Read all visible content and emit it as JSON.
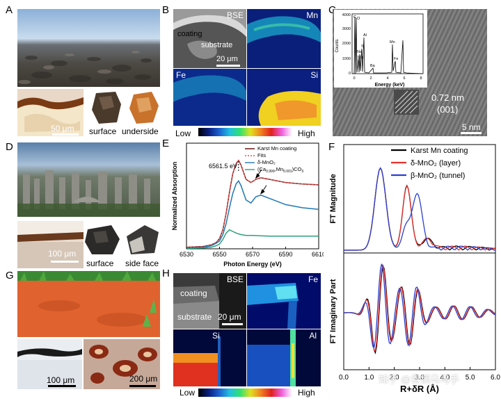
{
  "panel_labels": {
    "a": "A",
    "b": "B",
    "c": "C",
    "d": "D",
    "e": "E",
    "f": "F",
    "g": "G",
    "h": "H"
  },
  "panel_a": {
    "scale": "50 μm",
    "surface": "surface",
    "underside": "underside"
  },
  "panel_b": {
    "bse": "BSE",
    "mn": "Mn",
    "fe": "Fe",
    "si": "Si",
    "coating": "coating",
    "substrate": "substrate",
    "scale": "20 μm",
    "low": "Low",
    "high": "High"
  },
  "panel_c": {
    "d_spacing": "0.72 nm",
    "plane": "(001)",
    "scale": "5 nm",
    "inset": {
      "ylabel": "Counts",
      "xlabel": "Energy (keV)",
      "yticks": [
        "0",
        "1000",
        "2000",
        "3000",
        "4000"
      ],
      "xticks": [
        "0",
        "2",
        "4",
        "6",
        "8"
      ],
      "peaks": [
        "C",
        "O",
        "Na",
        "Mg",
        "Si",
        "Al",
        "Ba",
        "Mn",
        "Fe"
      ]
    }
  },
  "panel_d": {
    "scale": "100 μm",
    "surface": "surface",
    "side_face": "side face"
  },
  "panel_e": {
    "peak_label": "6561.5 eV"
  },
  "panel_g": {
    "scale1": "100 μm",
    "scale2": "200 μm"
  },
  "panel_h": {
    "bse": "BSE",
    "fe": "Fe",
    "si": "Si",
    "al": "Al",
    "coating": "coating",
    "substrate": "substrate",
    "scale": "20 μm",
    "low": "Low",
    "high": "High"
  },
  "watermark": "知乎 @青铜马马手",
  "chart_data": [
    {
      "type": "line",
      "panel": "E",
      "xlabel": "Photon Energy (eV)",
      "ylabel": "Normalized Absorption",
      "xlim": [
        6530,
        6610
      ],
      "xticks": [
        6530,
        6550,
        6570,
        6590,
        6610
      ],
      "legend_position": "top-right",
      "series": [
        {
          "name": "Karst Mn coating",
          "color": "#7a1f1f",
          "x": [
            6530,
            6540,
            6545,
            6548,
            6550,
            6552,
            6554,
            6556,
            6558,
            6560,
            6561.5,
            6563,
            6566,
            6569,
            6572,
            6575,
            6580,
            6590,
            6600,
            6610
          ],
          "y": [
            0.02,
            0.03,
            0.05,
            0.08,
            0.13,
            0.24,
            0.45,
            0.72,
            0.95,
            1.08,
            1.12,
            1.06,
            0.88,
            0.84,
            0.88,
            0.9,
            0.88,
            0.84,
            0.82,
            0.81
          ]
        },
        {
          "name": "Fits",
          "color": "#d9534f",
          "dashed": true,
          "x": [
            6530,
            6540,
            6545,
            6548,
            6550,
            6552,
            6554,
            6556,
            6558,
            6560,
            6561.5,
            6563,
            6566,
            6569,
            6572,
            6575,
            6580,
            6590,
            6600,
            6610
          ],
          "y": [
            0.02,
            0.03,
            0.05,
            0.08,
            0.13,
            0.24,
            0.45,
            0.72,
            0.95,
            1.08,
            1.12,
            1.06,
            0.88,
            0.84,
            0.88,
            0.9,
            0.88,
            0.84,
            0.82,
            0.81
          ]
        },
        {
          "name": "δ-MnO₂",
          "color": "#1f77b4",
          "x": [
            6530,
            6540,
            6545,
            6548,
            6550,
            6552,
            6554,
            6556,
            6558,
            6560,
            6561.5,
            6563,
            6566,
            6569,
            6572,
            6575,
            6580,
            6590,
            6600,
            6610
          ],
          "y": [
            0.01,
            0.02,
            0.04,
            0.07,
            0.1,
            0.18,
            0.32,
            0.52,
            0.7,
            0.82,
            0.86,
            0.8,
            0.62,
            0.58,
            0.66,
            0.68,
            0.64,
            0.56,
            0.52,
            0.5
          ]
        },
        {
          "name": "(Ca0.999Mn0.001)CO3",
          "color": "#2ca07a",
          "x": [
            6530,
            6540,
            6545,
            6548,
            6550,
            6552,
            6554,
            6556,
            6558,
            6560,
            6563,
            6566,
            6570,
            6580,
            6590,
            6600,
            6610
          ],
          "y": [
            0.005,
            0.01,
            0.02,
            0.04,
            0.06,
            0.12,
            0.2,
            0.24,
            0.22,
            0.2,
            0.18,
            0.17,
            0.17,
            0.16,
            0.16,
            0.16,
            0.16
          ]
        }
      ]
    },
    {
      "type": "line",
      "panel": "F",
      "ylabel": "FT Magnitude",
      "legend_position": "top-right",
      "series": [
        {
          "name": "Karst Mn coating",
          "color": "#000000"
        },
        {
          "name": "δ-MnO₂ (layer)",
          "color": "#e8302c"
        },
        {
          "name": "β-MnO₂ (tunnel)",
          "color": "#2a3fd0"
        }
      ]
    },
    {
      "type": "line",
      "panel": "F-lower",
      "ylabel": "FT Imaginary Part",
      "xlabel": "R+δR (Å)",
      "xlim": [
        0,
        6
      ],
      "xticks": [
        "0.0",
        "1.0",
        "2.0",
        "3.0",
        "4.0",
        "5.0",
        "6.0"
      ]
    }
  ]
}
